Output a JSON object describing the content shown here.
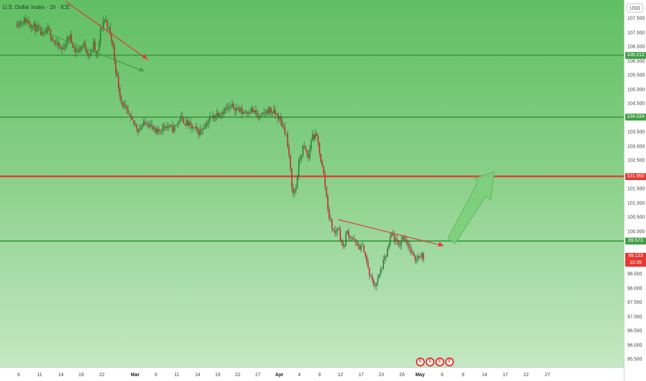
{
  "header": {
    "symbol_title": "U.S. Dollar Index · 1h · ICE"
  },
  "price_axis": {
    "currency": "USD",
    "ticks": [
      "107.500",
      "107.000",
      "106.500",
      "106.000",
      "105.500",
      "105.000",
      "104.500",
      "103.500",
      "103.000",
      "102.500",
      "101.500",
      "101.000",
      "100.500",
      "100.000",
      "98.500",
      "98.000",
      "97.500",
      "97.000",
      "96.500",
      "96.000",
      "95.500"
    ],
    "labels": {
      "level_106": "106.212",
      "level_104": "104.034",
      "level_101": "101.950",
      "level_99": "99.673",
      "last_price": "99.123",
      "countdown": "10:39"
    }
  },
  "time_axis": {
    "labels": [
      "6",
      "11",
      "14",
      "19",
      "22",
      "Mar",
      "6",
      "11",
      "14",
      "19",
      "22",
      "27",
      "Apr",
      "4",
      "9",
      "12",
      "17",
      "23",
      "26",
      "May",
      "6",
      "9",
      "14",
      "17",
      "22",
      "27"
    ]
  },
  "colors": {
    "support_line": "#43a047",
    "resistance_line": "#e53935",
    "trend_red": "#e53935",
    "trend_green": "#43a047",
    "projection_arrow": "#7ccf7c",
    "last_price_bg": "#e53935"
  },
  "event_markers": {
    "icon": "economic-event-icon",
    "count": 4,
    "glyph": "E"
  },
  "chart_data": {
    "type": "candlestick",
    "title": "U.S. Dollar Index · 1h · ICE",
    "y_range": [
      95.3,
      107.8
    ],
    "x_labels": [
      "6",
      "11",
      "14",
      "19",
      "22",
      "Mar",
      "6",
      "11",
      "14",
      "19",
      "22",
      "27",
      "Apr",
      "4",
      "9",
      "12",
      "17",
      "23",
      "26",
      "May",
      "6",
      "9",
      "14",
      "17",
      "22",
      "27"
    ],
    "horizontal_levels": [
      {
        "value": 106.212,
        "color": "green"
      },
      {
        "value": 104.034,
        "color": "green"
      },
      {
        "value": 101.95,
        "color": "red"
      },
      {
        "value": 99.673,
        "color": "green"
      }
    ],
    "last_price": 99.123,
    "price_path_approx": [
      [
        0,
        107.35
      ],
      [
        0.05,
        107.45
      ],
      [
        0.1,
        107.2
      ],
      [
        0.15,
        106.9
      ],
      [
        0.18,
        107.1
      ],
      [
        0.22,
        106.6
      ],
      [
        0.26,
        106.4
      ],
      [
        0.3,
        106.9
      ],
      [
        0.34,
        106.3
      ],
      [
        0.38,
        106.6
      ],
      [
        0.42,
        106.2
      ],
      [
        0.44,
        106.6
      ],
      [
        0.46,
        106.1
      ],
      [
        0.48,
        107.05
      ],
      [
        0.5,
        107.5
      ],
      [
        0.52,
        107.3
      ],
      [
        0.55,
        106.6
      ],
      [
        0.57,
        105.6
      ],
      [
        0.6,
        104.6
      ],
      [
        0.63,
        104.2
      ],
      [
        0.66,
        103.9
      ],
      [
        0.7,
        103.6
      ],
      [
        0.75,
        103.9
      ],
      [
        0.8,
        103.45
      ],
      [
        0.85,
        103.75
      ],
      [
        0.9,
        103.6
      ],
      [
        0.94,
        104.0
      ],
      [
        1.0,
        103.7
      ],
      [
        1.05,
        103.5
      ],
      [
        1.1,
        103.9
      ],
      [
        1.15,
        104.15
      ],
      [
        1.2,
        104.3
      ],
      [
        1.25,
        104.4
      ],
      [
        1.3,
        104.2
      ],
      [
        1.35,
        104.3
      ],
      [
        1.4,
        104.0
      ],
      [
        1.45,
        104.3
      ],
      [
        1.5,
        104.1
      ],
      [
        1.55,
        103.5
      ],
      [
        1.57,
        102.5
      ],
      [
        1.59,
        101.3
      ],
      [
        1.61,
        101.6
      ],
      [
        1.62,
        102.3
      ],
      [
        1.65,
        103.0
      ],
      [
        1.68,
        102.6
      ],
      [
        1.7,
        103.4
      ],
      [
        1.73,
        103.3
      ],
      [
        1.75,
        102.6
      ],
      [
        1.77,
        101.9
      ],
      [
        1.8,
        100.5
      ],
      [
        1.83,
        99.9
      ],
      [
        1.85,
        100.2
      ],
      [
        1.88,
        99.4
      ],
      [
        1.9,
        100.0
      ],
      [
        1.93,
        99.8
      ],
      [
        1.96,
        99.5
      ],
      [
        2.0,
        99.4
      ],
      [
        2.03,
        98.5
      ],
      [
        2.06,
        98.1
      ],
      [
        2.08,
        98.3
      ],
      [
        2.1,
        98.7
      ],
      [
        2.13,
        99.2
      ],
      [
        2.16,
        99.9
      ],
      [
        2.2,
        99.5
      ],
      [
        2.23,
        99.85
      ],
      [
        2.26,
        99.5
      ],
      [
        2.29,
        99.0
      ],
      [
        2.32,
        99.2
      ],
      [
        2.35,
        99.12
      ]
    ],
    "trend_lines": [
      {
        "color": "red",
        "from": [
          "Feb 3",
          108.2
        ],
        "to": [
          "Feb 28",
          105.9
        ]
      },
      {
        "color": "green",
        "from": [
          "Feb 3",
          107.3
        ],
        "to": [
          "Feb 28",
          105.65
        ]
      },
      {
        "color": "red",
        "from": [
          "Apr 11",
          100.4
        ],
        "to": [
          "May 7",
          99.45
        ]
      }
    ],
    "projection_arrow": {
      "from": 99.673,
      "to": 101.95
    },
    "grid": false
  }
}
